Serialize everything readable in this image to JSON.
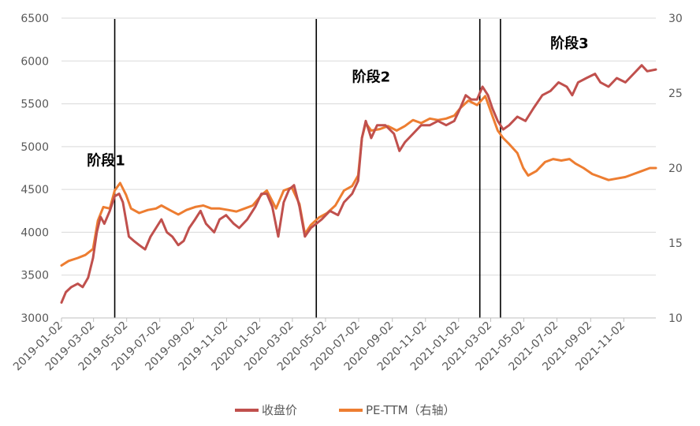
{
  "chart_data": {
    "type": "line",
    "left_axis": {
      "min": 3000,
      "max": 6500,
      "step": 500,
      "ticks": [
        "3000",
        "3500",
        "4000",
        "4500",
        "5000",
        "5500",
        "6000",
        "6500"
      ]
    },
    "right_axis": {
      "min": 10,
      "max": 30,
      "step": 5,
      "ticks": [
        "10",
        "15",
        "20",
        "25",
        "30"
      ]
    },
    "x_ticks": [
      "2019-01-02",
      "2019-03-02",
      "2019-05-02",
      "2019-07-02",
      "2019-09-02",
      "2019-11-02",
      "2020-01-02",
      "2020-03-02",
      "2020-05-02",
      "2020-07-02",
      "2020-09-02",
      "2020-11-02",
      "2021-01-02",
      "2021-03-02",
      "2021-05-02",
      "2021-07-02",
      "2021-09-02",
      "2021-11-02"
    ],
    "x_start": "2019-01-02",
    "x_end": "2021-12-31",
    "grid": "horizontal",
    "legend_position": "bottom",
    "stage_lines": [
      "2019-04-10",
      "2020-04-15",
      "2021-02-10",
      "2021-03-20"
    ],
    "stage_labels": [
      {
        "text": "阶段1",
        "date": "2019-03-25",
        "value": 4780
      },
      {
        "text": "阶段2",
        "date": "2020-07-25",
        "value": 5760
      },
      {
        "text": "阶段3",
        "date": "2021-07-25",
        "value": 6150
      }
    ],
    "series": [
      {
        "name": "收盘价",
        "axis": "left",
        "color": "#c0504d",
        "points": [
          [
            "2019-01-02",
            3180
          ],
          [
            "2019-01-10",
            3300
          ],
          [
            "2019-01-20",
            3360
          ],
          [
            "2019-02-01",
            3400
          ],
          [
            "2019-02-10",
            3360
          ],
          [
            "2019-02-20",
            3470
          ],
          [
            "2019-03-01",
            3700
          ],
          [
            "2019-03-08",
            4000
          ],
          [
            "2019-03-15",
            4180
          ],
          [
            "2019-03-22",
            4100
          ],
          [
            "2019-04-01",
            4250
          ],
          [
            "2019-04-10",
            4420
          ],
          [
            "2019-04-18",
            4450
          ],
          [
            "2019-04-25",
            4350
          ],
          [
            "2019-05-06",
            3950
          ],
          [
            "2019-05-15",
            3900
          ],
          [
            "2019-05-25",
            3850
          ],
          [
            "2019-06-05",
            3800
          ],
          [
            "2019-06-15",
            3950
          ],
          [
            "2019-06-25",
            4050
          ],
          [
            "2019-07-05",
            4150
          ],
          [
            "2019-07-15",
            4000
          ],
          [
            "2019-07-25",
            3950
          ],
          [
            "2019-08-05",
            3850
          ],
          [
            "2019-08-15",
            3900
          ],
          [
            "2019-08-25",
            4050
          ],
          [
            "2019-09-05",
            4150
          ],
          [
            "2019-09-15",
            4250
          ],
          [
            "2019-09-25",
            4100
          ],
          [
            "2019-10-10",
            4000
          ],
          [
            "2019-10-20",
            4150
          ],
          [
            "2019-11-01",
            4200
          ],
          [
            "2019-11-15",
            4100
          ],
          [
            "2019-11-25",
            4050
          ],
          [
            "2019-12-10",
            4150
          ],
          [
            "2019-12-25",
            4300
          ],
          [
            "2020-01-05",
            4450
          ],
          [
            "2020-01-15",
            4450
          ],
          [
            "2020-01-25",
            4300
          ],
          [
            "2020-02-05",
            3950
          ],
          [
            "2020-02-15",
            4350
          ],
          [
            "2020-02-25",
            4500
          ],
          [
            "2020-03-05",
            4550
          ],
          [
            "2020-03-15",
            4300
          ],
          [
            "2020-03-25",
            3950
          ],
          [
            "2020-04-05",
            4050
          ],
          [
            "2020-04-15",
            4100
          ],
          [
            "2020-04-25",
            4150
          ],
          [
            "2020-05-10",
            4250
          ],
          [
            "2020-05-25",
            4200
          ],
          [
            "2020-06-05",
            4350
          ],
          [
            "2020-06-20",
            4450
          ],
          [
            "2020-07-01",
            4600
          ],
          [
            "2020-07-08",
            5100
          ],
          [
            "2020-07-15",
            5300
          ],
          [
            "2020-07-25",
            5100
          ],
          [
            "2020-08-05",
            5250
          ],
          [
            "2020-08-20",
            5250
          ],
          [
            "2020-09-05",
            5150
          ],
          [
            "2020-09-15",
            4950
          ],
          [
            "2020-09-25",
            5050
          ],
          [
            "2020-10-10",
            5150
          ],
          [
            "2020-10-25",
            5250
          ],
          [
            "2020-11-10",
            5250
          ],
          [
            "2020-11-25",
            5300
          ],
          [
            "2020-12-10",
            5250
          ],
          [
            "2020-12-25",
            5300
          ],
          [
            "2021-01-05",
            5450
          ],
          [
            "2021-01-15",
            5600
          ],
          [
            "2021-01-25",
            5550
          ],
          [
            "2021-02-05",
            5550
          ],
          [
            "2021-02-15",
            5700
          ],
          [
            "2021-02-25",
            5600
          ],
          [
            "2021-03-05",
            5450
          ],
          [
            "2021-03-15",
            5300
          ],
          [
            "2021-03-25",
            5200
          ],
          [
            "2021-04-05",
            5250
          ],
          [
            "2021-04-20",
            5350
          ],
          [
            "2021-05-05",
            5300
          ],
          [
            "2021-05-20",
            5450
          ],
          [
            "2021-06-05",
            5600
          ],
          [
            "2021-06-20",
            5650
          ],
          [
            "2021-07-05",
            5750
          ],
          [
            "2021-07-20",
            5700
          ],
          [
            "2021-07-30",
            5600
          ],
          [
            "2021-08-10",
            5750
          ],
          [
            "2021-08-25",
            5800
          ],
          [
            "2021-09-10",
            5850
          ],
          [
            "2021-09-20",
            5750
          ],
          [
            "2021-10-05",
            5700
          ],
          [
            "2021-10-20",
            5800
          ],
          [
            "2021-11-05",
            5750
          ],
          [
            "2021-11-20",
            5850
          ],
          [
            "2021-12-05",
            5950
          ],
          [
            "2021-12-15",
            5880
          ],
          [
            "2021-12-31",
            5900
          ]
        ]
      },
      {
        "name": "PE-TTM（右轴）",
        "axis": "right",
        "color": "#ed7d31",
        "points": [
          [
            "2019-01-02",
            13.5
          ],
          [
            "2019-01-15",
            13.8
          ],
          [
            "2019-02-01",
            14.0
          ],
          [
            "2019-02-15",
            14.2
          ],
          [
            "2019-03-01",
            14.6
          ],
          [
            "2019-03-10",
            16.5
          ],
          [
            "2019-03-20",
            17.4
          ],
          [
            "2019-04-01",
            17.3
          ],
          [
            "2019-04-10",
            18.5
          ],
          [
            "2019-04-20",
            19.0
          ],
          [
            "2019-05-01",
            18.2
          ],
          [
            "2019-05-10",
            17.3
          ],
          [
            "2019-05-25",
            17.0
          ],
          [
            "2019-06-10",
            17.2
          ],
          [
            "2019-06-25",
            17.3
          ],
          [
            "2019-07-05",
            17.5
          ],
          [
            "2019-07-20",
            17.2
          ],
          [
            "2019-08-05",
            16.9
          ],
          [
            "2019-08-20",
            17.2
          ],
          [
            "2019-09-05",
            17.4
          ],
          [
            "2019-09-20",
            17.5
          ],
          [
            "2019-10-05",
            17.3
          ],
          [
            "2019-10-20",
            17.3
          ],
          [
            "2019-11-05",
            17.2
          ],
          [
            "2019-11-20",
            17.1
          ],
          [
            "2019-12-05",
            17.3
          ],
          [
            "2019-12-20",
            17.5
          ],
          [
            "2020-01-05",
            18.2
          ],
          [
            "2020-01-15",
            18.5
          ],
          [
            "2020-02-01",
            17.3
          ],
          [
            "2020-02-15",
            18.5
          ],
          [
            "2020-03-01",
            18.7
          ],
          [
            "2020-03-15",
            17.6
          ],
          [
            "2020-03-25",
            15.6
          ],
          [
            "2020-04-05",
            16.2
          ],
          [
            "2020-04-20",
            16.7
          ],
          [
            "2020-05-05",
            17.0
          ],
          [
            "2020-05-20",
            17.5
          ],
          [
            "2020-06-05",
            18.5
          ],
          [
            "2020-06-20",
            18.8
          ],
          [
            "2020-07-01",
            19.5
          ],
          [
            "2020-07-08",
            22.0
          ],
          [
            "2020-07-15",
            23.0
          ],
          [
            "2020-07-25",
            22.5
          ],
          [
            "2020-08-10",
            22.6
          ],
          [
            "2020-08-25",
            22.8
          ],
          [
            "2020-09-10",
            22.5
          ],
          [
            "2020-09-25",
            22.8
          ],
          [
            "2020-10-10",
            23.2
          ],
          [
            "2020-10-25",
            23.0
          ],
          [
            "2020-11-10",
            23.3
          ],
          [
            "2020-11-25",
            23.2
          ],
          [
            "2020-12-10",
            23.3
          ],
          [
            "2020-12-25",
            23.5
          ],
          [
            "2021-01-05",
            24.0
          ],
          [
            "2021-01-20",
            24.5
          ],
          [
            "2021-02-05",
            24.2
          ],
          [
            "2021-02-20",
            24.8
          ],
          [
            "2021-03-05",
            23.5
          ],
          [
            "2021-03-15",
            22.5
          ],
          [
            "2021-03-25",
            22.0
          ],
          [
            "2021-04-05",
            21.6
          ],
          [
            "2021-04-20",
            21.0
          ],
          [
            "2021-05-01",
            20.0
          ],
          [
            "2021-05-10",
            19.5
          ],
          [
            "2021-05-25",
            19.8
          ],
          [
            "2021-06-10",
            20.4
          ],
          [
            "2021-06-25",
            20.6
          ],
          [
            "2021-07-10",
            20.5
          ],
          [
            "2021-07-25",
            20.6
          ],
          [
            "2021-08-05",
            20.3
          ],
          [
            "2021-08-20",
            20.0
          ],
          [
            "2021-09-05",
            19.6
          ],
          [
            "2021-09-20",
            19.4
          ],
          [
            "2021-10-05",
            19.2
          ],
          [
            "2021-10-20",
            19.3
          ],
          [
            "2021-11-05",
            19.4
          ],
          [
            "2021-11-20",
            19.6
          ],
          [
            "2021-12-05",
            19.8
          ],
          [
            "2021-12-20",
            20.0
          ],
          [
            "2021-12-31",
            20.0
          ]
        ]
      }
    ]
  }
}
